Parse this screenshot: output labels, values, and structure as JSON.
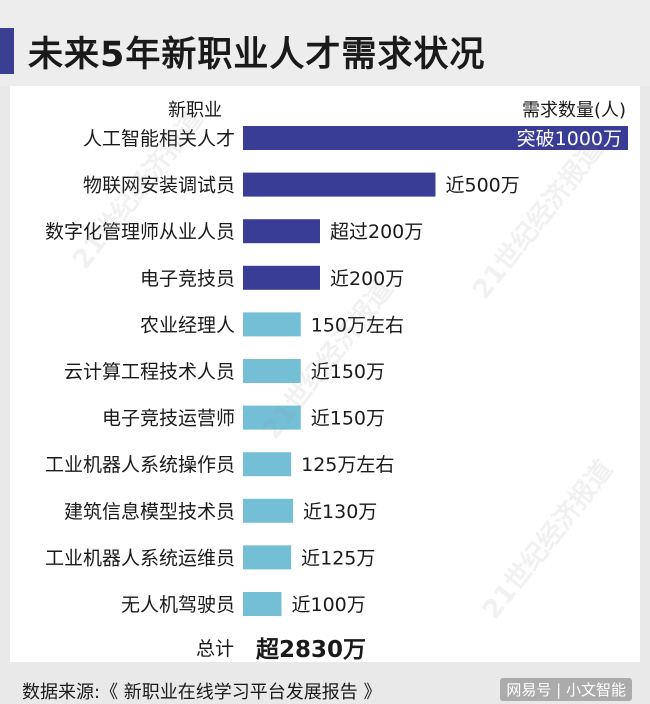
{
  "title": "未来5年新职业人才需求状况",
  "header": {
    "left": "新职业",
    "right": "需求数量(人)"
  },
  "chart_data": {
    "type": "bar",
    "orientation": "horizontal",
    "unit": "万",
    "categories": [
      "人工智能相关人才",
      "物联网安装调试员",
      "数字化管理师从业人员",
      "电子竞技员",
      "农业经理人",
      "云计算工程技术人员",
      "电子竞技运营师",
      "工业机器人系统操作员",
      "建筑信息模型技术员",
      "工业机器人系统运维员",
      "无人机驾驶员"
    ],
    "values": [
      1000,
      500,
      200,
      200,
      150,
      150,
      150,
      125,
      130,
      125,
      100
    ],
    "value_labels": [
      "突破1000万",
      "近500万",
      "超过200万",
      "近200万",
      "150万左右",
      "近150万",
      "近150万",
      "125万左右",
      "近130万",
      "近125万",
      "近100万"
    ],
    "bar_colors": [
      "#3a3d95",
      "#3a3d95",
      "#3a3d95",
      "#3a3d95",
      "#74bfd6",
      "#74bfd6",
      "#74bfd6",
      "#74bfd6",
      "#74bfd6",
      "#74bfd6",
      "#74bfd6"
    ],
    "total_label": "总计",
    "total_value": "超2830万"
  },
  "source": "数据来源:《 新职业在线学习平台发展报告 》",
  "brand": "网易号 | 小文智能",
  "watermark": "21世纪经济报道"
}
